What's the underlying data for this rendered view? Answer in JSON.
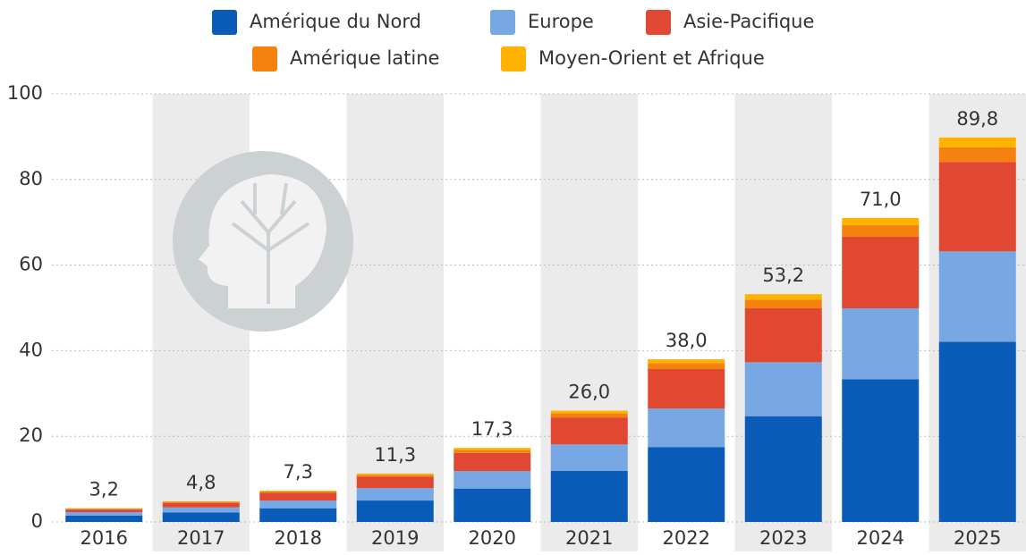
{
  "chart_data": {
    "type": "stacked_bar",
    "categories": [
      "2016",
      "2017",
      "2018",
      "2019",
      "2020",
      "2021",
      "2022",
      "2023",
      "2024",
      "2025"
    ],
    "series": [
      {
        "name": "Amérique du Nord",
        "color": "#0a5cb8",
        "values": [
          1.5,
          2.2,
          3.2,
          5.0,
          7.8,
          11.9,
          17.5,
          24.7,
          33.3,
          42.1
        ]
      },
      {
        "name": "Europe",
        "color": "#78a8e3",
        "values": [
          0.8,
          1.2,
          1.8,
          2.9,
          4.1,
          6.2,
          9.0,
          12.6,
          16.6,
          21.1
        ]
      },
      {
        "name": "Asie-Pacifique",
        "color": "#e04832",
        "values": [
          0.6,
          1.0,
          1.8,
          2.7,
          4.2,
          6.3,
          9.2,
          12.6,
          16.7,
          20.9
        ]
      },
      {
        "name": "Amérique latine",
        "color": "#f5820f",
        "values": [
          0.2,
          0.3,
          0.3,
          0.4,
          0.7,
          1.0,
          1.4,
          2.0,
          2.7,
          3.4
        ]
      },
      {
        "name": "Moyen-Orient et Afrique",
        "color": "#ffb300",
        "values": [
          0.1,
          0.1,
          0.2,
          0.3,
          0.5,
          0.6,
          0.9,
          1.3,
          1.7,
          2.3
        ]
      }
    ],
    "totals": {
      "values": [
        3.2,
        4.8,
        7.3,
        11.3,
        17.3,
        26.0,
        38.0,
        53.2,
        71.0,
        89.8
      ],
      "value_labels": [
        "3,2",
        "4,8",
        "7,3",
        "11,3",
        "17,3",
        "26,0",
        "38,0",
        "53,2",
        "71,0",
        "89,8"
      ]
    },
    "ylim": [
      0,
      100
    ],
    "yticks": [
      0,
      20,
      40,
      60,
      80,
      100
    ],
    "grid": true,
    "band_color": "#ebebeb"
  }
}
